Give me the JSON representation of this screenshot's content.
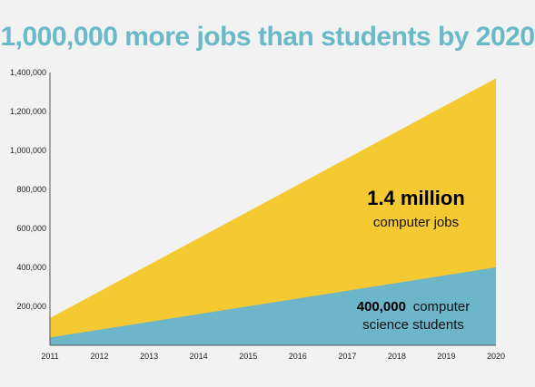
{
  "colors": {
    "background": "#f2f2f2",
    "title": "#6ab9c9",
    "jobs": "#f5c932",
    "students": "#6db5c9",
    "axis": "#555555"
  },
  "chart_data": {
    "type": "area",
    "title": "1,000,000 more jobs than students by 2020",
    "xlabel": "",
    "ylabel": "",
    "x": [
      2011,
      2020
    ],
    "xticks": [
      "2011",
      "2012",
      "2013",
      "2014",
      "2015",
      "2016",
      "2017",
      "2018",
      "2019",
      "2020"
    ],
    "ylim": [
      0,
      1400000
    ],
    "yticks": [
      "200,000",
      "400,000",
      "600,000",
      "800,000",
      "1,000,000",
      "1,200,000",
      "1,400,000"
    ],
    "grid": false,
    "series": [
      {
        "key": "jobs",
        "values": [
          140000,
          1370000
        ]
      },
      {
        "key": "students",
        "values": [
          40000,
          400000
        ]
      }
    ],
    "annotations": {
      "jobs_value": "1.4 million",
      "jobs_label": "computer jobs",
      "students_value": "400,000",
      "students_label_1": "computer",
      "students_label_2": "science students"
    }
  }
}
